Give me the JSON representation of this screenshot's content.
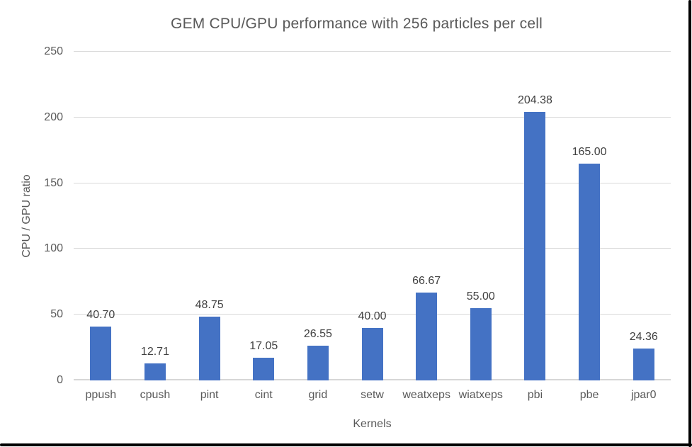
{
  "chart_data": {
    "type": "bar",
    "title": "GEM CPU/GPU performance with 256 particles per cell",
    "xlabel": "Kernels",
    "ylabel": "CPU / GPU ratio",
    "categories": [
      "ppush",
      "cpush",
      "pint",
      "cint",
      "grid",
      "setw",
      "weatxeps",
      "wiatxeps",
      "pbi",
      "pbe",
      "jpar0"
    ],
    "values": [
      40.7,
      12.71,
      48.75,
      17.05,
      26.55,
      40.0,
      66.67,
      55.0,
      204.38,
      165.0,
      24.36
    ],
    "data_labels": [
      "40.70",
      "12.71",
      "48.75",
      "17.05",
      "26.55",
      "40.00",
      "66.67",
      "55.00",
      "204.38",
      "165.00",
      "24.36"
    ],
    "ylim": [
      0,
      250
    ],
    "yticks": [
      0,
      50,
      100,
      150,
      200,
      250
    ],
    "grid": true,
    "legend": false,
    "bar_color": "#4472C4",
    "gridline_color": "#D9D9D9",
    "axis_text_color": "#595959",
    "data_label_color": "#404040",
    "frame_color": "#000000"
  }
}
